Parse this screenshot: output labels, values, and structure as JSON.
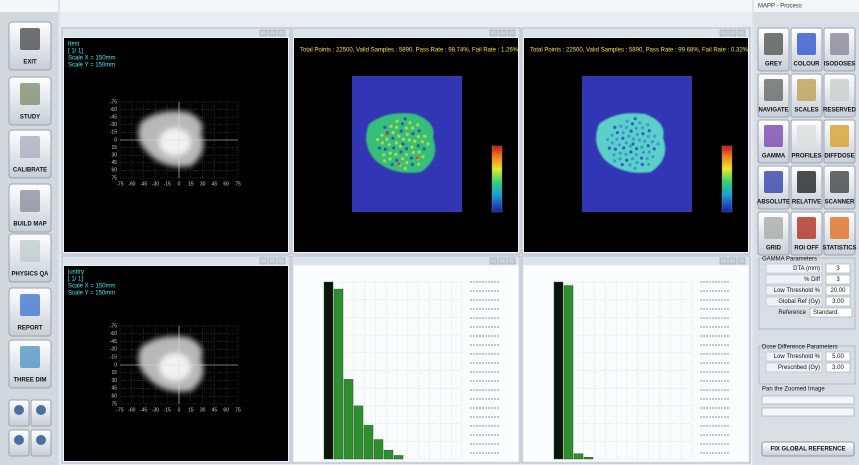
{
  "toolbar": {
    "buttons": [
      "EXIT",
      "STUDY",
      "CALIBRATE",
      "BUILD MAP",
      "PHYSICS QA",
      "REPORT",
      "THREE DIM"
    ]
  },
  "dose_maps": [
    {
      "name": "ttest",
      "frame": "[ 1/ 1]",
      "scale_x": "Scale X = 150mm",
      "scale_y": "Scale Y = 150mm"
    },
    {
      "name": "justtry",
      "frame": "[ 1/ 1]",
      "scale_x": "Scale X = 150mm",
      "scale_y": "Scale Y = 150mm"
    }
  ],
  "axis_ticks": [
    -75,
    -60,
    -45,
    -30,
    -15,
    0,
    15,
    30,
    45,
    60,
    75
  ],
  "gamma_maps": [
    {
      "stats": "Total Points : 22500, Valid Samples : 5890, Pass Rate : 98.74%, Fail Rate : 1.26%"
    },
    {
      "stats": "Total Points : 22500, Valid Samples : 5890, Pass Rate : 99.68%, Fail Rate : 0.32%"
    }
  ],
  "histograms": [
    {
      "values": [
        100,
        96,
        45,
        30,
        19,
        11,
        5,
        2
      ],
      "ylim": [
        0,
        100
      ],
      "first_color": "#0c160c",
      "color": "#2f8f2f"
    },
    {
      "values": [
        100,
        98,
        3,
        1
      ],
      "ylim": [
        0,
        100
      ],
      "first_color": "#0c160c",
      "color": "#2f8f2f"
    }
  ],
  "process": {
    "title": "MAPP - Process",
    "tools": [
      "GREY",
      "COLOUR",
      "ISODOSES",
      "NAVIGATE",
      "SCALES",
      "RESERVED",
      "GAMMA",
      "PROFILES",
      "DIFFDOSE",
      "ABSOLUTE",
      "RELATIVE",
      "SCANNER",
      "GRID",
      "ROI OFF",
      "STATISTICS"
    ],
    "gamma_params": {
      "title": "GAMMA Parameters",
      "fields": [
        {
          "label": "DTA (mm)",
          "value": "3"
        },
        {
          "label": "% Diff",
          "value": "3"
        },
        {
          "label": "Low Threshold %",
          "value": "20.00"
        },
        {
          "label": "Global Ref (Gy)",
          "value": "3.00"
        }
      ],
      "reference_label": "Reference",
      "reference_value": "Standard"
    },
    "dose_params": {
      "title": "Dose Difference Parameters",
      "fields": [
        {
          "label": "Low Threshold %",
          "value": "5.00"
        },
        {
          "label": "Prescribed (Gy)",
          "value": "3.00"
        }
      ]
    },
    "pan_label": "Pan the Zoomed Image",
    "fix_button": "FIX GLOBAL REFERENCE"
  }
}
